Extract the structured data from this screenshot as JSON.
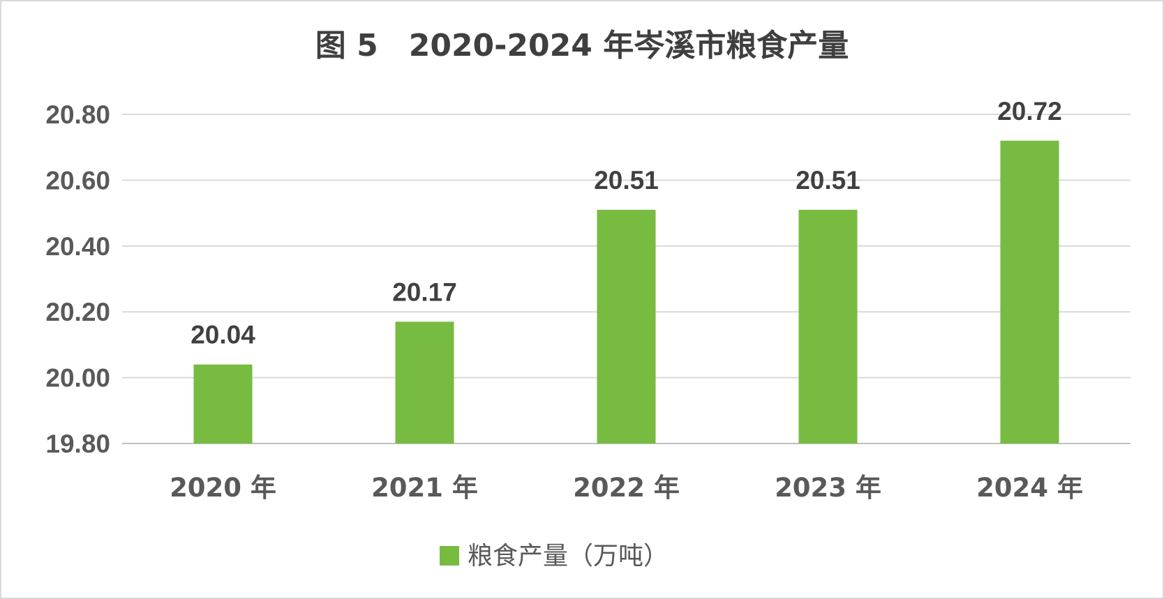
{
  "chart_data": {
    "type": "bar",
    "title": "图 5　2020-2024 年岑溪市粮食产量",
    "categories": [
      "2020 年",
      "2021 年",
      "2022 年",
      "2023 年",
      "2024 年"
    ],
    "series": [
      {
        "name": "粮食产量（万吨）",
        "values": [
          20.04,
          20.17,
          20.51,
          20.51,
          20.72
        ],
        "color": "#77bb41"
      }
    ],
    "ylim": [
      19.8,
      20.8
    ],
    "yticks": [
      "19.80",
      "20.00",
      "20.20",
      "20.40",
      "20.60",
      "20.80"
    ],
    "data_labels": [
      "20.04",
      "20.17",
      "20.51",
      "20.51",
      "20.72"
    ],
    "grid": true,
    "legend_position": "bottom"
  }
}
